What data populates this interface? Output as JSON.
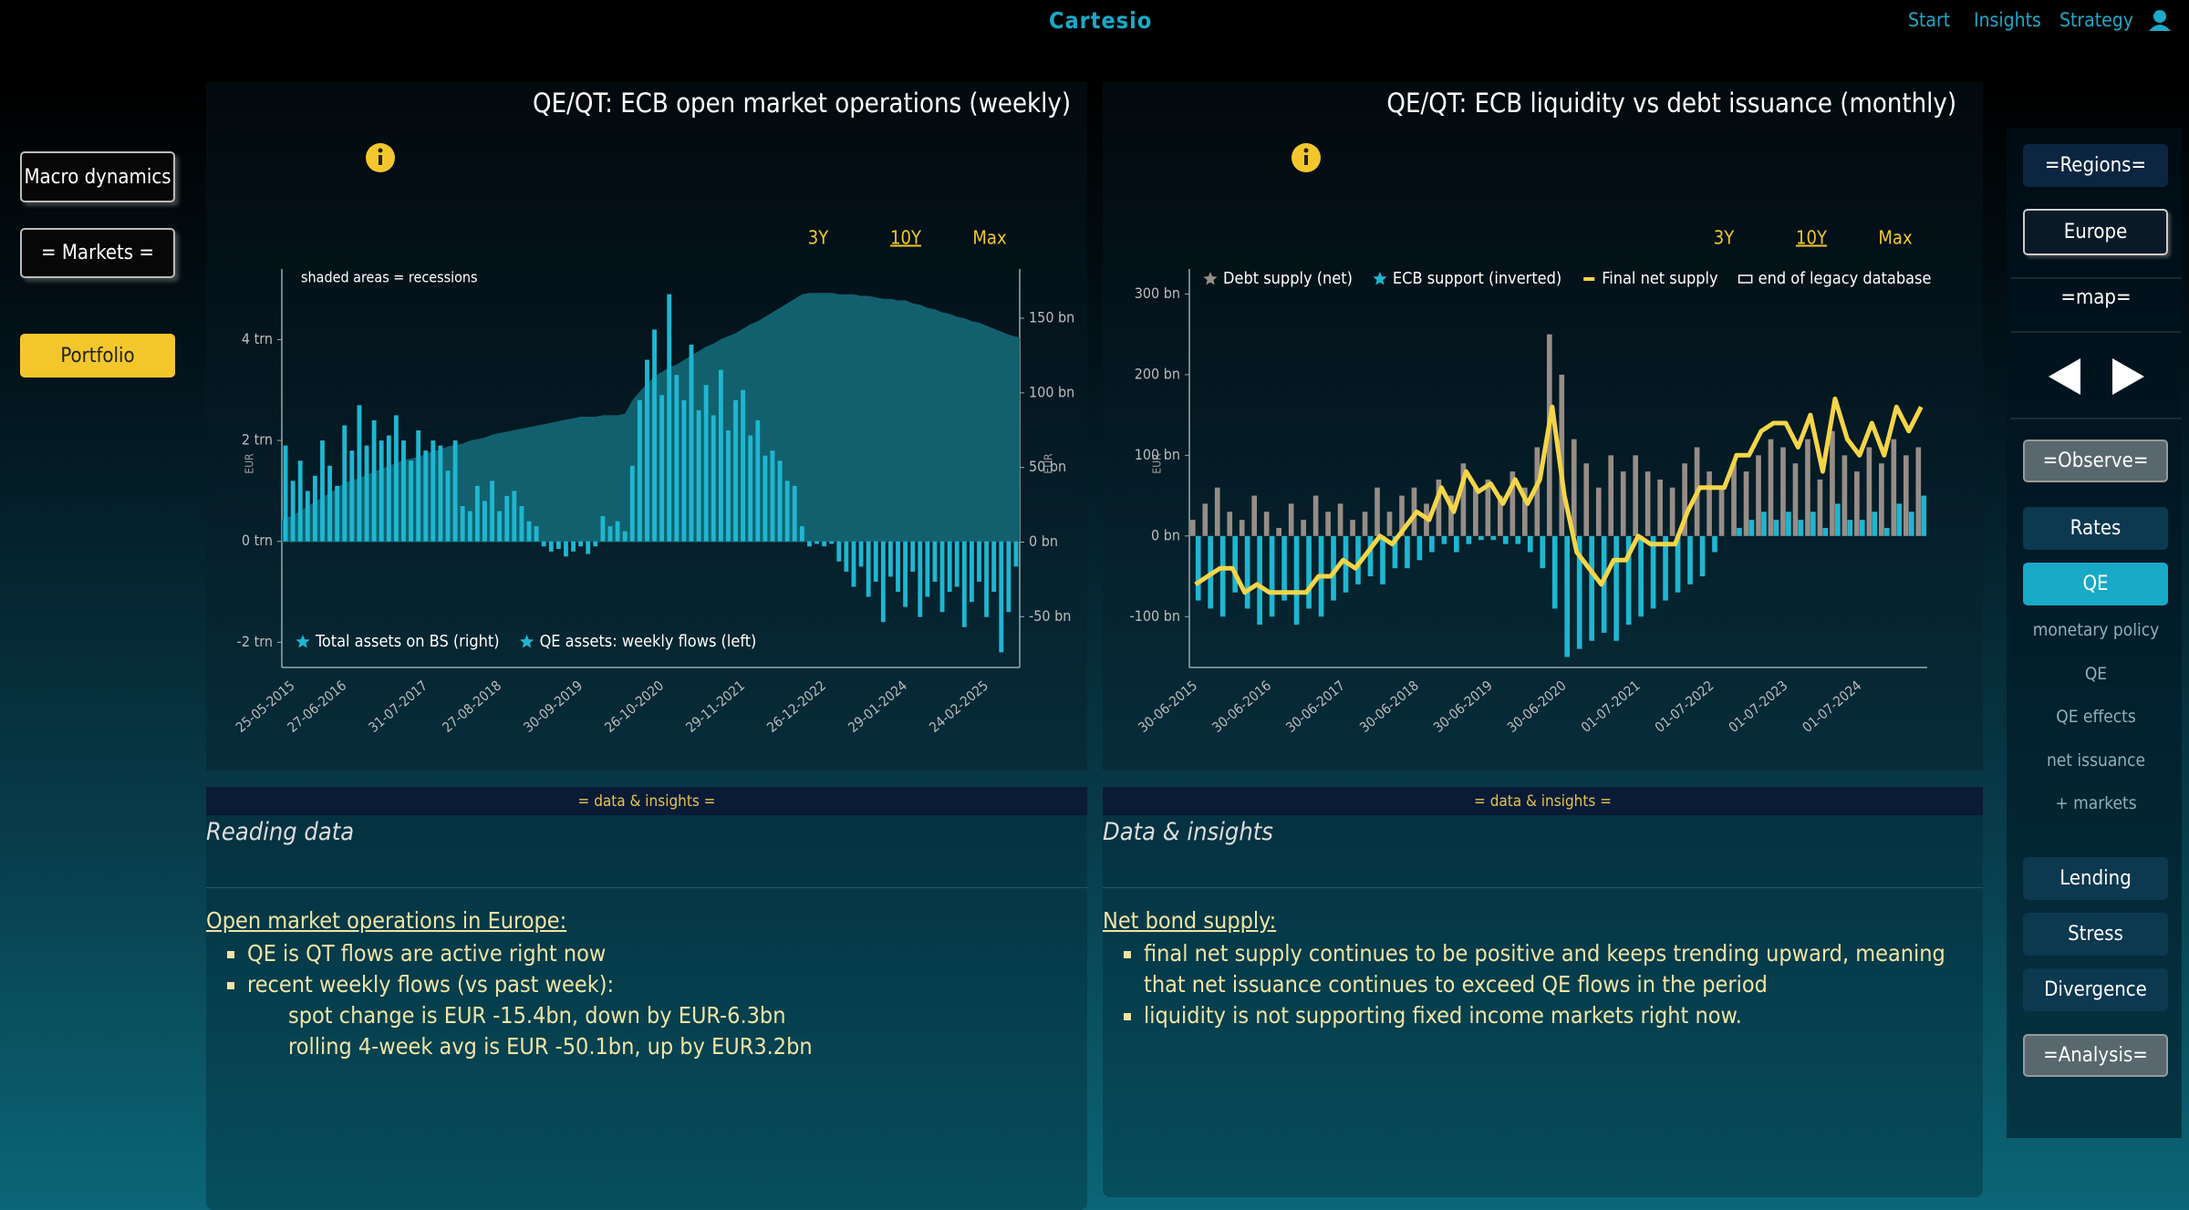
{
  "header": {
    "brand": "Cartesio",
    "nav": [
      "Start",
      "Insights",
      "Strategy"
    ]
  },
  "left_menu": [
    "Macro dynamics",
    "= Markets =",
    "Portfolio"
  ],
  "right_menu": {
    "regions": "=Regions=",
    "region": "Europe",
    "map": "=map=",
    "observe": "=Observe=",
    "observe_items": [
      "Rates",
      "QE"
    ],
    "sub_items": [
      "monetary policy",
      "QE",
      "QE effects",
      "net issuance",
      "+ markets"
    ],
    "more_items": [
      "Lending",
      "Stress",
      "Divergence"
    ],
    "analysis": "=Analysis="
  },
  "chart_data": [
    {
      "type": "bar",
      "title": "QE/QT: ECB open market operations (weekly)",
      "annotation": "shaded areas = recessions",
      "ranges": [
        "3Y",
        "10Y",
        "Max"
      ],
      "ylabel": "EUR",
      "y2label": "EUR",
      "legend": "bottom-left",
      "categories": [
        null,
        "25-05-2015",
        null,
        null,
        null,
        null,
        null,
        null,
        "27-06-2016",
        null,
        null,
        null,
        null,
        null,
        null,
        null,
        null,
        null,
        null,
        "31-07-2017",
        null,
        null,
        null,
        null,
        null,
        null,
        null,
        null,
        null,
        "27-08-2018",
        null,
        null,
        null,
        null,
        null,
        null,
        null,
        null,
        null,
        null,
        "30-09-2019",
        null,
        null,
        null,
        null,
        null,
        null,
        null,
        null,
        null,
        null,
        "26-10-2020",
        null,
        null,
        null,
        null,
        null,
        null,
        null,
        null,
        null,
        null,
        "29-11-2021",
        null,
        null,
        null,
        null,
        null,
        null,
        null,
        null,
        null,
        null,
        "26-12-2022",
        null,
        null,
        null,
        null,
        null,
        null,
        null,
        null,
        null,
        null,
        "29-01-2024",
        null,
        null,
        null,
        null,
        null,
        null,
        null,
        null,
        null,
        null,
        "24-02-2025",
        null,
        null,
        null,
        null
      ],
      "series": [
        {
          "name": "Total assets on BS (right)",
          "type": "area",
          "axis": "y2",
          "color": "#12606e",
          "values": [
            15,
            18,
            21,
            24,
            27,
            30,
            33,
            36,
            40,
            41,
            43,
            45,
            47,
            49,
            51,
            53,
            55,
            56,
            57,
            59,
            61,
            62,
            64,
            65,
            66,
            68,
            69,
            70,
            72,
            73,
            74,
            75,
            76,
            77,
            78,
            79,
            80,
            81,
            82,
            83,
            84,
            84,
            84,
            85,
            85,
            85,
            86,
            95,
            101,
            106,
            111,
            114,
            117,
            119,
            122,
            125,
            128,
            131,
            133,
            136,
            138,
            140,
            143,
            146,
            148,
            151,
            154,
            157,
            160,
            163,
            166,
            167,
            167,
            167,
            167,
            166,
            166,
            166,
            165,
            165,
            164,
            163,
            163,
            162,
            162,
            160,
            159,
            157,
            156,
            154,
            153,
            151,
            150,
            148,
            147,
            145,
            143,
            141,
            139,
            137
          ]
        },
        {
          "name": "QE assets: weekly flows (left)",
          "type": "bar",
          "color": "#1fb6d0",
          "values": [
            1.9,
            1.2,
            1.6,
            1.0,
            1.3,
            2.0,
            1.5,
            1.1,
            2.3,
            1.8,
            2.7,
            1.9,
            2.4,
            2.0,
            2.1,
            2.5,
            2.0,
            1.6,
            2.2,
            1.8,
            2.0,
            1.9,
            1.4,
            2.0,
            0.7,
            0.6,
            1.1,
            0.8,
            1.2,
            0.6,
            0.9,
            1.0,
            0.7,
            0.4,
            0.3,
            -0.1,
            -0.2,
            -0.15,
            -0.3,
            -0.2,
            -0.1,
            -0.25,
            -0.1,
            0.5,
            0.3,
            0.4,
            0.2,
            1.5,
            2.8,
            3.6,
            4.2,
            2.9,
            4.9,
            3.3,
            2.8,
            3.9,
            2.6,
            3.1,
            2.5,
            3.4,
            2.2,
            2.8,
            3.0,
            2.1,
            2.4,
            1.7,
            1.8,
            1.6,
            1.2,
            1.1,
            0.3,
            -0.1,
            -0.05,
            -0.1,
            -0.05,
            -0.4,
            -0.6,
            -0.9,
            -0.5,
            -1.1,
            -0.8,
            -1.6,
            -0.7,
            -1.0,
            -1.3,
            -0.6,
            -1.5,
            -1.1,
            -0.8,
            -1.4,
            -1.0,
            -0.9,
            -1.7,
            -1.2,
            -0.8,
            -1.5,
            -1.0,
            -2.2,
            -1.4,
            -0.5
          ]
        }
      ],
      "ylim": [
        -2.5,
        5.4
      ],
      "yticks": [
        {
          "value": -2,
          "label": "-2 trn"
        },
        {
          "value": 0,
          "label": "0 trn"
        },
        {
          "value": 2,
          "label": "2 trn"
        },
        {
          "value": 4,
          "label": "4 trn"
        }
      ],
      "y2lim": [
        -84,
        183
      ],
      "y2ticks": [
        {
          "value": -50,
          "label": "-50 bn"
        },
        {
          "value": 0,
          "label": "0 bn"
        },
        {
          "value": 50,
          "label": "50 bn"
        },
        {
          "value": 100,
          "label": "100 bn"
        },
        {
          "value": 150,
          "label": "150 bn"
        }
      ]
    },
    {
      "type": "bar",
      "title": "QE/QT: ECB liquidity vs debt issuance (monthly)",
      "ranges": [
        "3Y",
        "10Y",
        "Max"
      ],
      "ylabel": "EUR",
      "legend": "top",
      "categories": [
        "30-06-2015",
        null,
        null,
        null,
        null,
        null,
        "30-06-2016",
        null,
        null,
        null,
        null,
        null,
        "30-06-2017",
        null,
        null,
        null,
        null,
        null,
        "30-06-2018",
        null,
        null,
        null,
        null,
        null,
        "30-06-2019",
        null,
        null,
        null,
        null,
        null,
        "30-06-2020",
        null,
        null,
        null,
        null,
        null,
        "01-07-2021",
        null,
        null,
        null,
        null,
        null,
        "01-07-2022",
        null,
        null,
        null,
        null,
        null,
        "01-07-2023",
        null,
        null,
        null,
        null,
        null,
        "01-07-2024",
        null,
        null,
        null,
        null,
        null
      ],
      "series": [
        {
          "name": "Debt supply (net)",
          "type": "bar",
          "color": "#978d86",
          "values": [
            20,
            40,
            60,
            30,
            20,
            50,
            30,
            10,
            40,
            20,
            50,
            30,
            40,
            20,
            30,
            60,
            30,
            50,
            60,
            40,
            70,
            50,
            90,
            60,
            70,
            50,
            80,
            60,
            110,
            250,
            200,
            120,
            90,
            60,
            100,
            80,
            100,
            80,
            70,
            60,
            90,
            110,
            80,
            60,
            90,
            80,
            100,
            120,
            110,
            90,
            120,
            70,
            130,
            100,
            80,
            110,
            90,
            120,
            100,
            110
          ]
        },
        {
          "name": "ECB support (inverted)",
          "type": "bar",
          "color": "#1fb6d0",
          "values": [
            -80,
            -90,
            -100,
            -70,
            -90,
            -110,
            -100,
            -80,
            -110,
            -90,
            -100,
            -80,
            -70,
            -60,
            -50,
            -60,
            -40,
            -40,
            -30,
            -20,
            -10,
            -20,
            -10,
            -5,
            -5,
            -10,
            -10,
            -20,
            -40,
            -90,
            -150,
            -140,
            -130,
            -120,
            -130,
            -110,
            -100,
            -90,
            -80,
            -70,
            -60,
            -50,
            -20,
            0,
            10,
            20,
            30,
            20,
            30,
            20,
            30,
            10,
            40,
            20,
            20,
            30,
            10,
            40,
            30,
            50
          ]
        },
        {
          "name": "Final net supply",
          "type": "line",
          "color": "#f4d548",
          "values": [
            -60,
            -50,
            -40,
            -40,
            -70,
            -60,
            -70,
            -70,
            -70,
            -70,
            -50,
            -50,
            -30,
            -40,
            -20,
            0,
            -10,
            10,
            30,
            20,
            60,
            30,
            80,
            55,
            65,
            40,
            70,
            40,
            70,
            160,
            50,
            -20,
            -40,
            -60,
            -30,
            -30,
            0,
            -10,
            -10,
            -10,
            30,
            60,
            60,
            60,
            100,
            100,
            130,
            140,
            140,
            110,
            150,
            80,
            170,
            120,
            100,
            140,
            100,
            160,
            130,
            160
          ]
        },
        {
          "name": "end of legacy database",
          "type": "marker",
          "color": "#ffffff"
        }
      ],
      "ylim": [
        -163,
        331
      ],
      "yticks": [
        {
          "value": -100,
          "label": "-100 bn"
        },
        {
          "value": 0,
          "label": "0 bn"
        },
        {
          "value": 100,
          "label": "100 bn"
        },
        {
          "value": 200,
          "label": "200 bn"
        },
        {
          "value": 300,
          "label": "300 bn"
        }
      ]
    }
  ],
  "panels": [
    {
      "bar": "= data & insights =",
      "heading": "Reading data",
      "subtitle": "Open market operations in Europe:",
      "bullets": [
        "QE is QT flows are active right now",
        "recent weekly flows (vs past week):"
      ],
      "sub_lines": [
        "spot change is EUR -15.4bn, down by EUR-6.3bn",
        "rolling 4-week avg is EUR -50.1bn, up by EUR3.2bn"
      ]
    },
    {
      "bar": "= data & insights =",
      "heading": "Data & insights",
      "subtitle": "Net bond supply:",
      "bullets": [
        "final net supply continues to be positive and keeps trending upward, meaning that net issuance continues to exceed QE flows in the period",
        "liquidity is not supporting fixed income markets right now."
      ]
    }
  ]
}
